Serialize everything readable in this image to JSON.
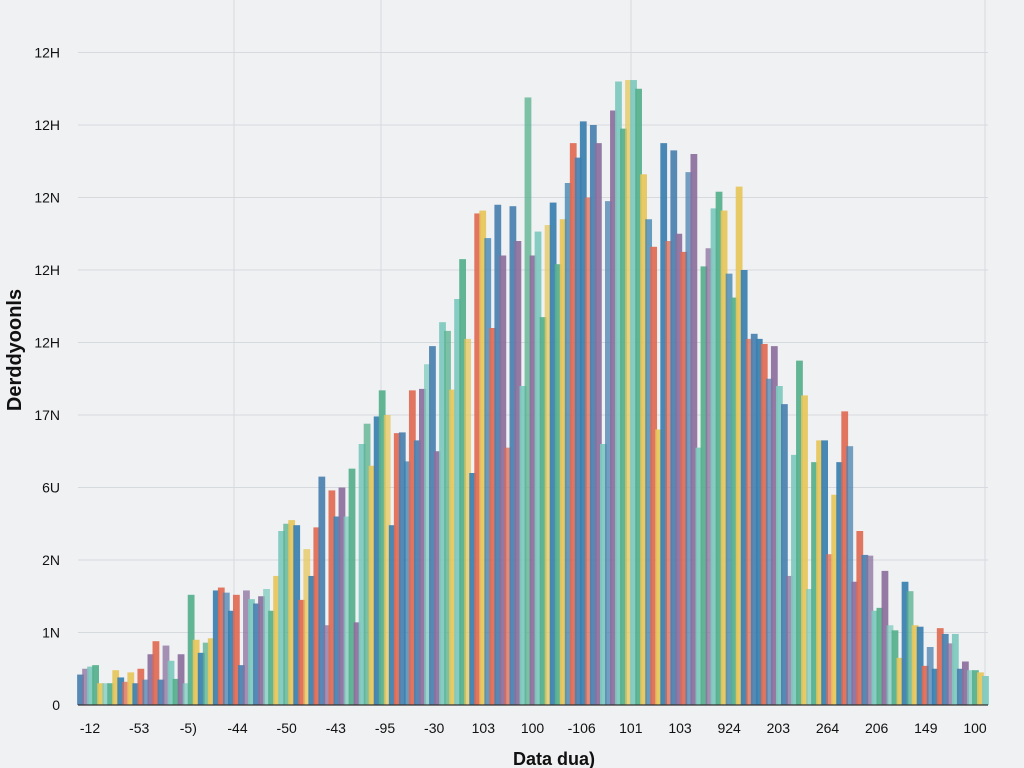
{
  "chart_data": {
    "type": "bar",
    "title": "",
    "xlabel": "Data dua)",
    "ylabel": "Derddyoonls",
    "y_tick_labels": [
      "0",
      "1N",
      "2N",
      "6U",
      "17N",
      "12H",
      "12H",
      "12N",
      "12H",
      "12H"
    ],
    "x_tick_labels": [
      "-12",
      "-53",
      "-5)",
      "-44",
      "-50",
      "-43",
      "-95",
      "-30",
      "103",
      "100",
      "-106",
      "101",
      "103",
      "924",
      "203",
      "264",
      "206",
      "149",
      "100"
    ],
    "ylim": [
      0,
      9
    ],
    "grid": true,
    "legend": "none",
    "palette": [
      "#4a80b0",
      "#7dc9be",
      "#e6c65a",
      "#e06a52",
      "#8b6f9c",
      "#55b08c",
      "#3a7fb0"
    ],
    "values": [
      0.42,
      0.5,
      0.53,
      0.55,
      0.3,
      0.3,
      0.3,
      0.48,
      0.38,
      0.32,
      0.45,
      0.3,
      0.5,
      0.35,
      0.7,
      0.88,
      0.35,
      0.82,
      0.61,
      0.36,
      0.7,
      0.3,
      1.52,
      0.9,
      0.72,
      0.86,
      0.92,
      1.58,
      1.62,
      1.55,
      1.3,
      1.52,
      0.55,
      1.58,
      1.46,
      1.4,
      1.5,
      1.6,
      1.3,
      1.78,
      2.4,
      2.5,
      2.55,
      2.48,
      1.45,
      2.15,
      1.78,
      2.45,
      3.15,
      1.1,
      2.96,
      2.6,
      3.0,
      2.6,
      3.26,
      1.14,
      3.6,
      3.88,
      3.3,
      3.98,
      4.34,
      4.0,
      2.48,
      3.75,
      3.76,
      3.36,
      4.34,
      3.65,
      4.36,
      4.7,
      4.95,
      3.5,
      5.28,
      5.16,
      4.35,
      5.6,
      6.15,
      5.05,
      3.2,
      6.78,
      6.82,
      6.44,
      5.2,
      6.9,
      6.2,
      3.55,
      6.88,
      6.4,
      4.4,
      8.38,
      6.2,
      6.53,
      5.35,
      6.62,
      6.93,
      6.08,
      6.7,
      7.2,
      7.75,
      7.55,
      8.05,
      7.0,
      8.0,
      7.75,
      3.6,
      6.95,
      8.2,
      8.6,
      7.95,
      8.62,
      8.62,
      8.5,
      7.32,
      6.7,
      6.32,
      3.8,
      7.75,
      6.4,
      7.65,
      6.5,
      6.25,
      7.35,
      7.6,
      3.55,
      6.05,
      6.3,
      6.85,
      7.08,
      6.82,
      5.95,
      5.62,
      7.15,
      6.0,
      5.05,
      5.12,
      5.05,
      4.98,
      4.5,
      4.95,
      4.4,
      4.15,
      1.78,
      3.45,
      4.75,
      4.27,
      1.6,
      3.35,
      3.65,
      3.65,
      2.08,
      2.9,
      3.35,
      4.05,
      3.57,
      1.7,
      2.4,
      2.07,
      2.06,
      1.3,
      1.34,
      1.85,
      1.1,
      1.03,
      0.65,
      1.7,
      1.57,
      1.1,
      1.08,
      0.54,
      0.8,
      0.5,
      1.06,
      0.98,
      0.85,
      0.98,
      0.5,
      0.6,
      0.48,
      0.48,
      0.45,
      0.4
    ]
  }
}
